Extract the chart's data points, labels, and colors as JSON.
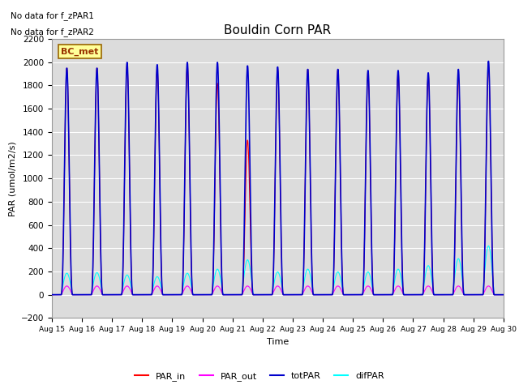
{
  "title": "Bouldin Corn PAR",
  "ylabel": "PAR (umol/m2/s)",
  "xlabel": "Time",
  "ylim": [
    -200,
    2200
  ],
  "n_days": 15,
  "yticks": [
    -200,
    0,
    200,
    400,
    600,
    800,
    1000,
    1200,
    1400,
    1600,
    1800,
    2000,
    2200
  ],
  "xtick_labels": [
    "Aug 15",
    "Aug 16",
    "Aug 17",
    "Aug 18",
    "Aug 19",
    "Aug 20",
    "Aug 21",
    "Aug 22",
    "Aug 23",
    "Aug 24",
    "Aug 25",
    "Aug 26",
    "Aug 27",
    "Aug 28",
    "Aug 29",
    "Aug 30"
  ],
  "annotation1": "No data for f_zPAR1",
  "annotation2": "No data for f_zPAR2",
  "bc_met_label": "BC_met",
  "color_PAR_in": "#ff0000",
  "color_PAR_out": "#ff00ff",
  "color_totPAR": "#0000cc",
  "color_difPAR": "#00ffff",
  "bg_color": "#dcdcdc",
  "fig_bg": "#ffffff",
  "peak_totPAR": [
    1950,
    1950,
    2000,
    1980,
    2000,
    2000,
    1970,
    1960,
    1940,
    1940,
    1930,
    1930,
    1910,
    1940,
    2010
  ],
  "peak_PAR_in": [
    1950,
    1950,
    1980,
    1950,
    1980,
    1820,
    1330,
    1940,
    1940,
    1940,
    1920,
    1920,
    1900,
    1880,
    1960
  ],
  "peak_PAR_out": [
    75,
    75,
    75,
    75,
    75,
    75,
    75,
    75,
    75,
    75,
    75,
    75,
    75,
    75,
    75
  ],
  "peak_difPAR": [
    185,
    190,
    170,
    155,
    185,
    220,
    300,
    195,
    220,
    195,
    195,
    220,
    250,
    310,
    420
  ]
}
